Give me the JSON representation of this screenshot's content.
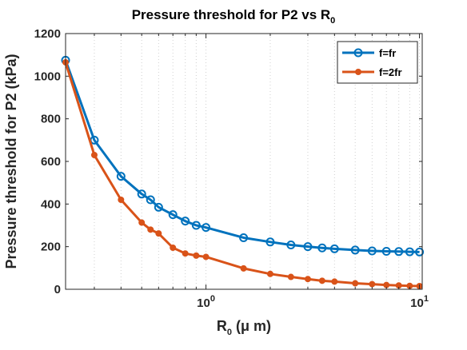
{
  "chart_data": {
    "type": "line",
    "title": {
      "main": "Pressure threshold for P2 vs R",
      "sub": "0"
    },
    "xlabel": {
      "main": "R",
      "sub": "0",
      "rest": " (μ m)"
    },
    "ylabel": "Pressure threshold for P2 (kPa)",
    "xscale": "log",
    "xlim": [
      0.22,
      10.3
    ],
    "ylim": [
      0,
      1200
    ],
    "grid": "x-minor-dotted",
    "legend": "top-right",
    "yticks": [
      0,
      200,
      400,
      600,
      800,
      1000,
      1200
    ],
    "xticks": [
      {
        "value": 1,
        "base": "10",
        "exp": "0"
      },
      {
        "value": 10,
        "base": "10",
        "exp": "1"
      }
    ],
    "series": [
      {
        "name": "f=fr",
        "color": "#0072BD",
        "marker": "open-circle",
        "x": [
          0.22,
          0.3,
          0.4,
          0.5,
          0.55,
          0.6,
          0.7,
          0.8,
          0.9,
          1.0,
          1.5,
          2.0,
          2.5,
          3.0,
          3.5,
          4.0,
          5.0,
          6.0,
          7.0,
          8.0,
          9.0,
          10.0
        ],
        "y": [
          1075,
          700,
          530,
          447,
          420,
          385,
          350,
          320,
          300,
          290,
          242,
          222,
          208,
          200,
          194,
          190,
          184,
          180,
          178,
          177,
          176,
          175
        ]
      },
      {
        "name": "f=2fr",
        "color": "#D95319",
        "marker": "filled-dot",
        "x": [
          0.22,
          0.3,
          0.4,
          0.5,
          0.55,
          0.6,
          0.7,
          0.8,
          0.9,
          1.0,
          1.5,
          2.0,
          2.5,
          3.0,
          3.5,
          4.0,
          5.0,
          6.0,
          7.0,
          8.0,
          9.0,
          10.0
        ],
        "y": [
          1065,
          630,
          420,
          313,
          280,
          262,
          195,
          168,
          158,
          152,
          98,
          72,
          58,
          48,
          40,
          36,
          28,
          24,
          20,
          18,
          16,
          15
        ]
      }
    ]
  }
}
